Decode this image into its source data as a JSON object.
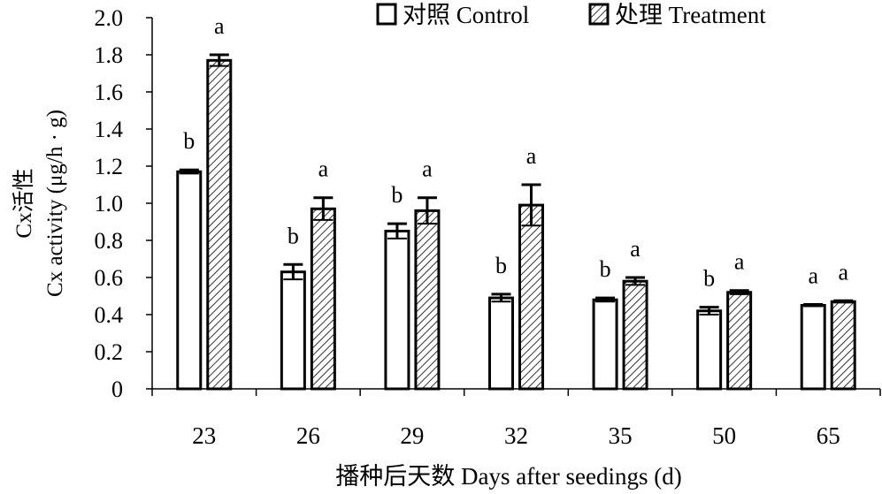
{
  "chart_data": {
    "type": "bar",
    "title": "",
    "xlabel": "播种后天数 Days after seedings (d)",
    "ylabel_line1": "Cx活性",
    "ylabel_line2": "Cx activity (μg/h · g)",
    "ylim": [
      0,
      2.0
    ],
    "yticks": [
      "0",
      "0.2",
      "0.4",
      "0.6",
      "0.8",
      "1.0",
      "1.2",
      "1.4",
      "1.6",
      "1.8",
      "2.0"
    ],
    "categories": [
      "23",
      "26",
      "29",
      "32",
      "35",
      "50",
      "65"
    ],
    "legend_position": "top-right",
    "grid": false,
    "series": [
      {
        "name": "对照 Control",
        "pattern": "white",
        "values": [
          1.17,
          0.63,
          0.85,
          0.49,
          0.48,
          0.42,
          0.45
        ],
        "errors": [
          0.01,
          0.04,
          0.04,
          0.02,
          0.01,
          0.02,
          0.005
        ],
        "letters": [
          "b",
          "b",
          "b",
          "b",
          "b",
          "b",
          "a"
        ]
      },
      {
        "name": "处理 Treatment",
        "pattern": "hatched",
        "values": [
          1.77,
          0.97,
          0.96,
          0.99,
          0.58,
          0.52,
          0.47
        ],
        "errors": [
          0.03,
          0.06,
          0.07,
          0.11,
          0.02,
          0.01,
          0.005
        ],
        "letters": [
          "a",
          "a",
          "a",
          "a",
          "a",
          "a",
          "a"
        ]
      }
    ]
  }
}
